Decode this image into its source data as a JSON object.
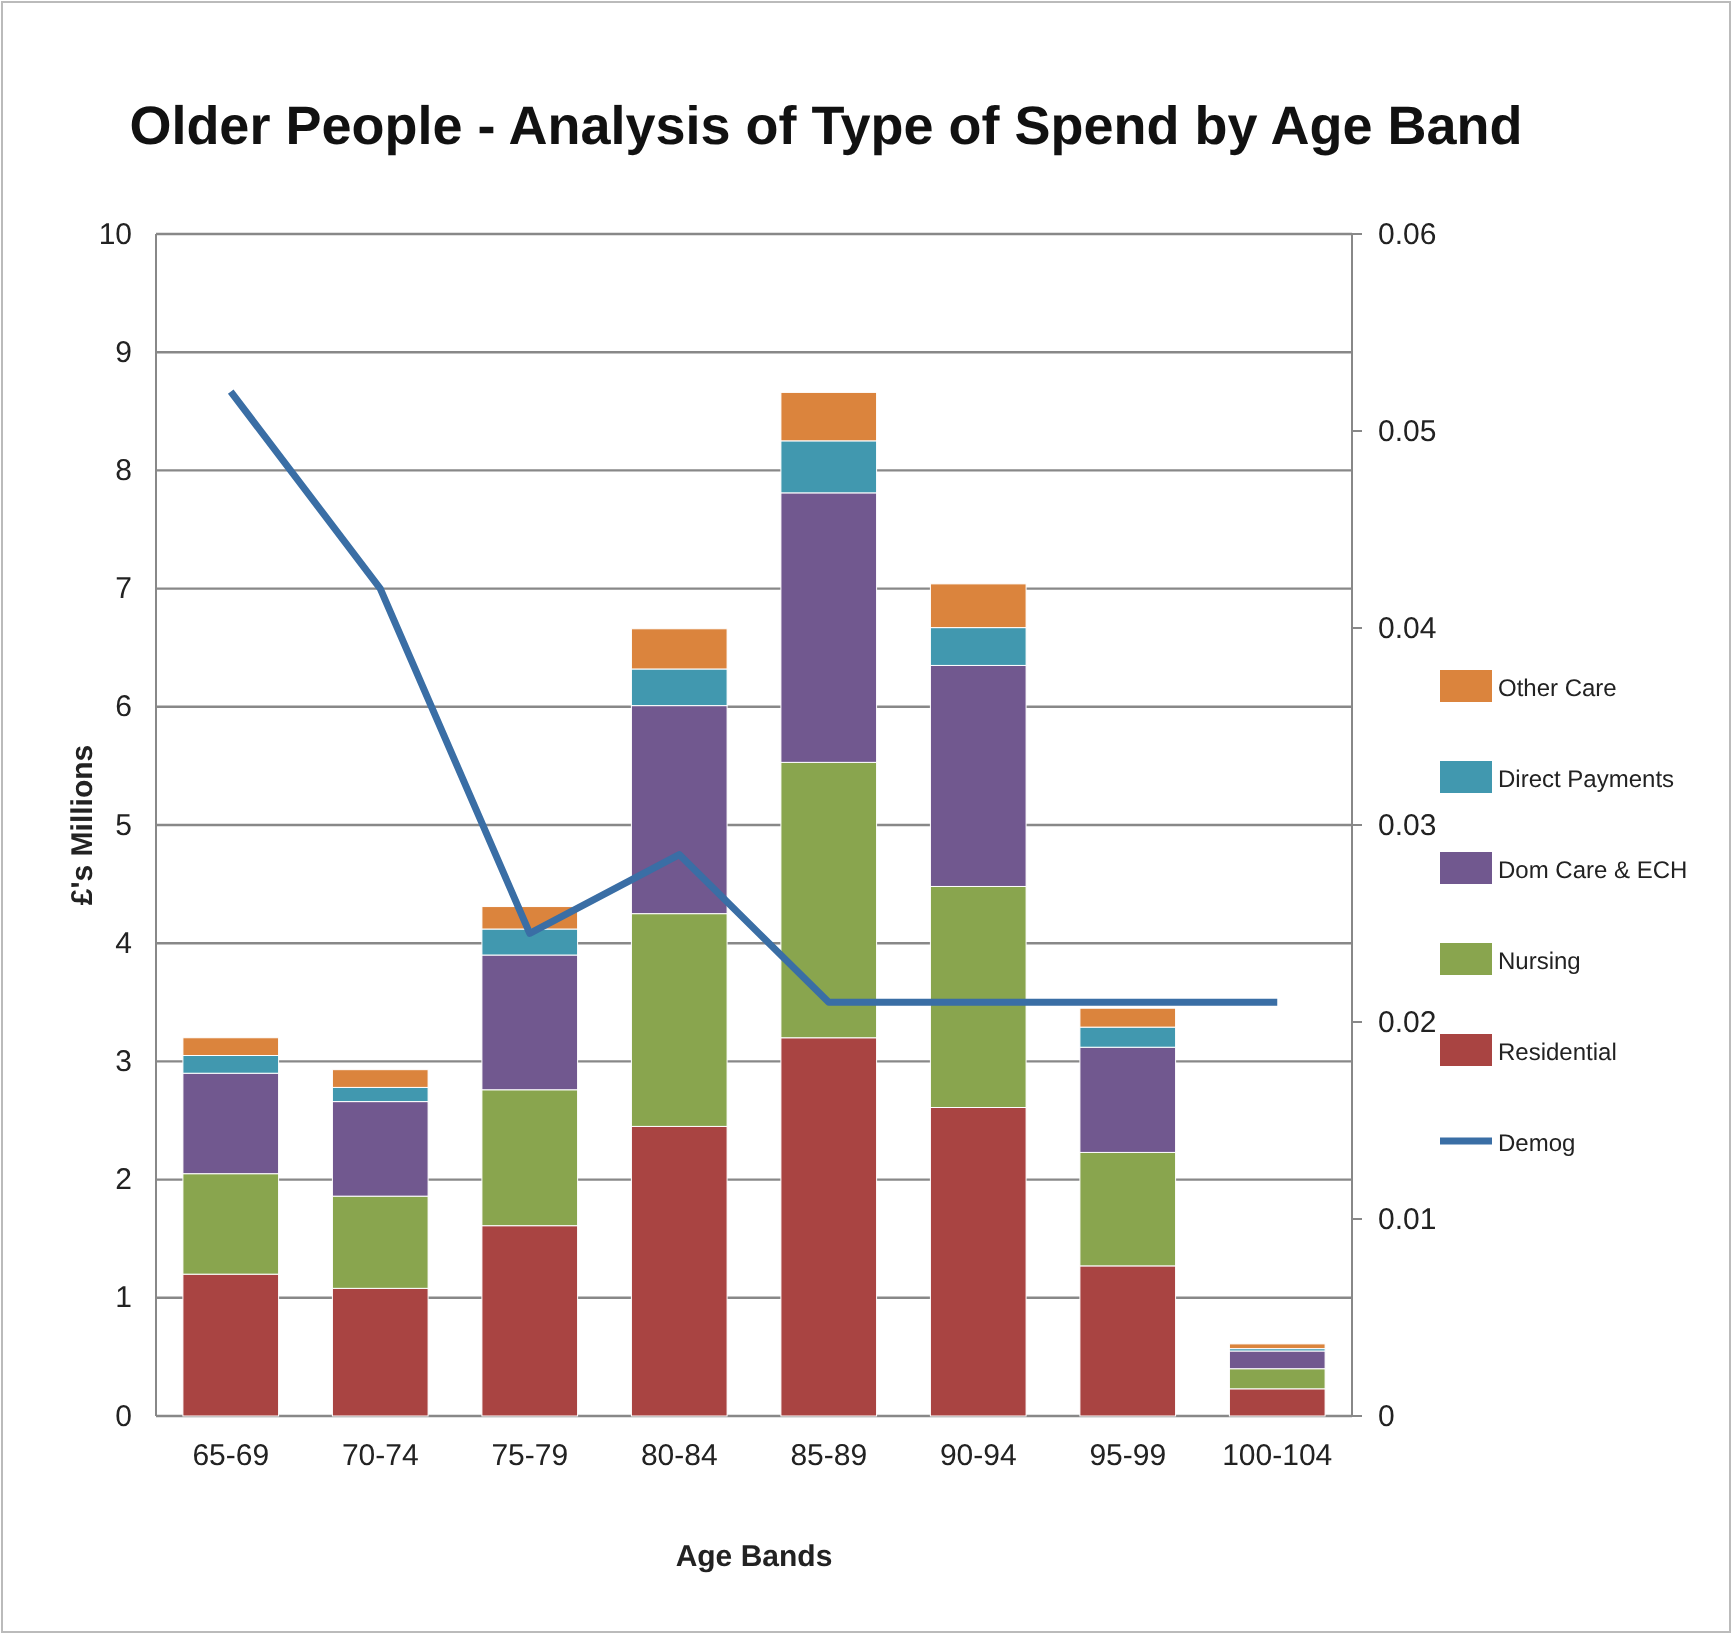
{
  "chart_data": {
    "type": "bar",
    "title": "Older People - Analysis of Type of Spend by Age Band",
    "xlabel": "Age Bands",
    "ylabel": "£'s Millions",
    "stacked": true,
    "categories": [
      "65-69",
      "70-74",
      "75-79",
      "80-84",
      "85-89",
      "90-94",
      "95-99",
      "100-104"
    ],
    "series": [
      {
        "name": "Residential",
        "color": "#a94442",
        "values": [
          1.2,
          1.08,
          1.61,
          2.45,
          3.2,
          2.61,
          1.27,
          0.23
        ]
      },
      {
        "name": "Nursing",
        "color": "#89a54e",
        "values": [
          0.85,
          0.78,
          1.15,
          1.8,
          2.33,
          1.87,
          0.96,
          0.17
        ]
      },
      {
        "name": "Dom Care & ECH",
        "color": "#71588f",
        "values": [
          0.85,
          0.8,
          1.14,
          1.76,
          2.28,
          1.87,
          0.89,
          0.15
        ]
      },
      {
        "name": "Direct Payments",
        "color": "#4198af",
        "values": [
          0.15,
          0.12,
          0.22,
          0.31,
          0.44,
          0.32,
          0.17,
          0.02
        ]
      },
      {
        "name": "Other Care",
        "color": "#db843d",
        "values": [
          0.15,
          0.15,
          0.19,
          0.34,
          0.41,
          0.37,
          0.16,
          0.04
        ]
      },
      {
        "name": "Demog",
        "type": "line",
        "axis": "y2",
        "color": "#3a6ea5",
        "values": [
          0.052,
          0.042,
          0.0245,
          0.0285,
          0.021,
          0.021,
          0.021,
          0.021
        ]
      }
    ],
    "ylim": [
      0,
      10
    ],
    "yticks": [
      0,
      1,
      2,
      3,
      4,
      5,
      6,
      7,
      8,
      9,
      10
    ],
    "y2lim": [
      0,
      0.06
    ],
    "y2ticks": [
      0,
      0.01,
      0.02,
      0.03,
      0.04,
      0.05,
      0.06
    ],
    "grid": "y",
    "legend": "right",
    "marker": "none",
    "line_style": "solid"
  }
}
